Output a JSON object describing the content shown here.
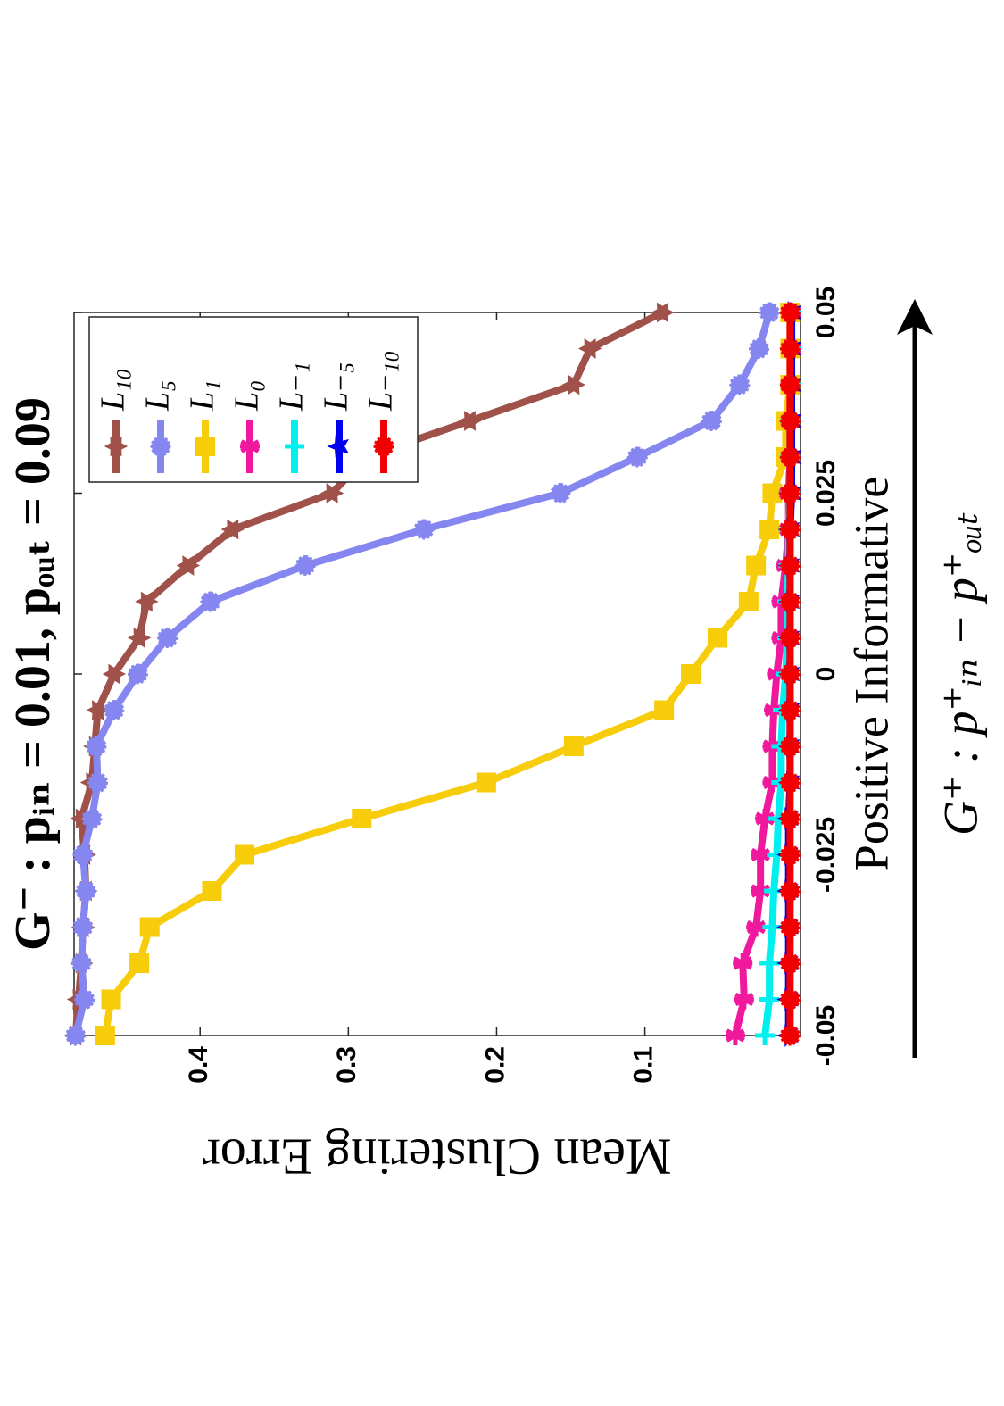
{
  "chart_data": {
    "type": "line",
    "title": "G⁻ : pᵢₙ = 0.01,  pₒᵤₜ = 0.09",
    "x_label": "G⁺ : p⁺ᵢₙ − p⁺ₒᵤₜ",
    "annotation": "Positive Informative",
    "y_label": "Mean Clustering Error",
    "x": [
      -0.05,
      -0.045,
      -0.04,
      -0.035,
      -0.03,
      -0.025,
      -0.02,
      -0.015,
      -0.01,
      -0.005,
      0,
      0.005,
      0.01,
      0.015,
      0.02,
      0.025,
      0.03,
      0.035,
      0.04,
      0.045,
      0.05
    ],
    "xlim": [
      -0.05,
      0.05
    ],
    "xticks": [
      -0.05,
      -0.025,
      0,
      0.025,
      0.05
    ],
    "ylim": [
      -0.005,
      0.485
    ],
    "yticks": [
      0.1,
      0.2,
      0.3,
      0.4
    ],
    "grid": false,
    "legend": "top-right",
    "series": [
      {
        "name": "L₁₀",
        "color": "#a0524a",
        "marker": "hexagram",
        "values": [
          0.484,
          0.482,
          0.48,
          0.479,
          0.477,
          0.478,
          0.48,
          0.473,
          0.471,
          0.469,
          0.458,
          0.441,
          0.436,
          0.408,
          0.378,
          0.311,
          0.288,
          0.218,
          0.148,
          0.137,
          0.088
        ]
      },
      {
        "name": "L₅",
        "color": "#8686f0",
        "marker": "circle",
        "values": [
          0.484,
          0.478,
          0.48,
          0.479,
          0.477,
          0.479,
          0.473,
          0.469,
          0.47,
          0.458,
          0.442,
          0.422,
          0.393,
          0.329,
          0.249,
          0.157,
          0.105,
          0.055,
          0.036,
          0.023,
          0.016
        ]
      },
      {
        "name": "L₁",
        "color": "#f7cc0a",
        "marker": "square",
        "values": [
          0.464,
          0.46,
          0.441,
          0.434,
          0.392,
          0.37,
          0.291,
          0.207,
          0.148,
          0.087,
          0.069,
          0.051,
          0.03,
          0.025,
          0.016,
          0.014,
          0.005,
          0.005,
          0.002,
          0.002,
          0.002
        ]
      },
      {
        "name": "L₀",
        "color": "#f0189c",
        "marker": "asterisk",
        "values": [
          0.039,
          0.033,
          0.034,
          0.025,
          0.022,
          0.022,
          0.019,
          0.014,
          0.014,
          0.013,
          0.011,
          0.008,
          0.008,
          0.005,
          0.003,
          0.003,
          0.002,
          0.002,
          0.002,
          0.001,
          0.001
        ]
      },
      {
        "name": "L₋₁",
        "color": "#00f0f0",
        "marker": "plus",
        "values": [
          0.019,
          0.016,
          0.016,
          0.014,
          0.013,
          0.011,
          0.01,
          0.008,
          0.008,
          0.007,
          0.005,
          0.004,
          0.004,
          0.003,
          0.003,
          0.002,
          0.002,
          0.002,
          0.001,
          0.001,
          0.001
        ]
      },
      {
        "name": "L₋₅",
        "color": "#0000f0",
        "marker": "star",
        "values": [
          0.003,
          0.003,
          0.003,
          0.003,
          0.003,
          0.003,
          0.003,
          0.002,
          0.002,
          0.002,
          0.002,
          0.002,
          0.002,
          0.002,
          0.002,
          0.001,
          0.001,
          0.001,
          0.001,
          0.001,
          0.001
        ]
      },
      {
        "name": "L₋₁₀",
        "color": "#f00000",
        "marker": "circle",
        "values": [
          0.002,
          0.002,
          0.002,
          0.002,
          0.002,
          0.002,
          0.002,
          0.002,
          0.002,
          0.002,
          0.002,
          0.002,
          0.002,
          0.002,
          0.002,
          0.002,
          0.002,
          0.002,
          0.002,
          0.002,
          0.002
        ]
      }
    ]
  }
}
